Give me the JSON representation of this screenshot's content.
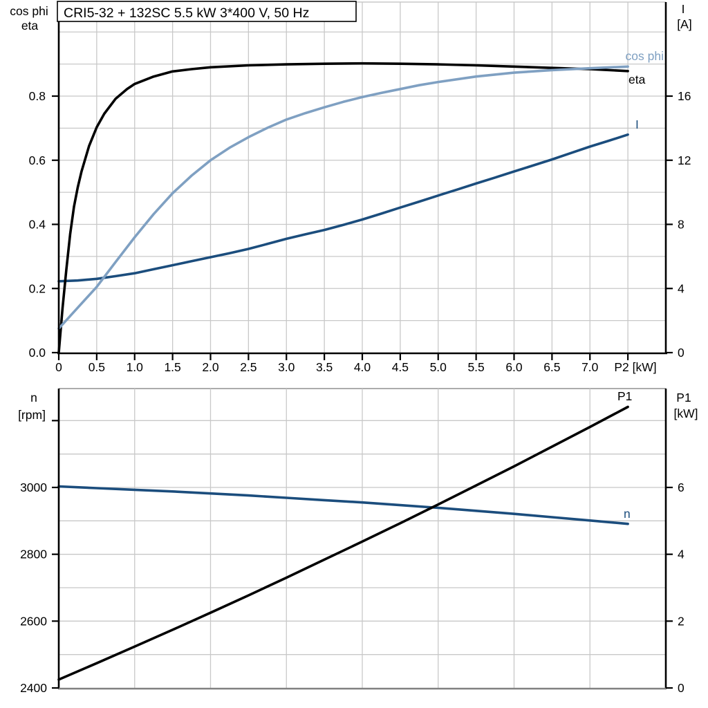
{
  "figure": {
    "background": "#ffffff",
    "title_box": {
      "text": "CRI5-32 + 132SC   5.5 kW   3*400 V, 50 Hz"
    }
  },
  "colors": {
    "black": "#000000",
    "light_blue": "#7fa0c2",
    "dark_blue": "#1b4d7d",
    "grid": "#c8c8c8",
    "top_border": "#c8c8c8",
    "gray_axis": "#808080",
    "bottom_top_border": "#a0a0a0",
    "text": "#000000"
  },
  "chart_data": [
    {
      "type": "line",
      "title": "CRI5-32 + 132SC   5.5 kW   3*400 V, 50 Hz",
      "x_axis": {
        "label": "P2 [kW]",
        "min": 0,
        "max": 8,
        "grid_step": 0.5,
        "tick_values": [
          0,
          0.5,
          1,
          1.5,
          2,
          2.5,
          3,
          3.5,
          4,
          4.5,
          5,
          5.5,
          6,
          6.5,
          7,
          7.5
        ],
        "tick_labels": [
          "0",
          "0.5",
          "1.0",
          "1.5",
          "2.0",
          "2.5",
          "3.0",
          "3.5",
          "4.0",
          "4.5",
          "5.0",
          "5.5",
          "6.0",
          "6.5",
          "7.0",
          ""
        ]
      },
      "y_left_axis": {
        "header": [
          "cos phi",
          "eta"
        ],
        "min": 0,
        "max": 1.093,
        "grid_step": 0.1,
        "tick_values": [
          0,
          0.2,
          0.4,
          0.6,
          0.8
        ],
        "tick_labels": [
          "0.0",
          "0.2",
          "0.4",
          "0.6",
          "0.8"
        ]
      },
      "y_right_axis": {
        "header": [
          "I",
          "[A]"
        ],
        "min": 0,
        "max": 21.87,
        "tick_values": [
          0,
          4,
          8,
          12,
          16
        ],
        "tick_labels": [
          "0",
          "4",
          "8",
          "12",
          "16"
        ]
      },
      "legend_position": "inline-labels",
      "grid": true,
      "series": [
        {
          "id": "current",
          "label": "I",
          "axis": "right",
          "color": "#1b4d7d",
          "label_anchor": [
            919,
            186,
            "start"
          ],
          "points": [
            [
              0,
              4.45
            ],
            [
              0.25,
              4.5
            ],
            [
              0.5,
              4.6
            ],
            [
              0.75,
              4.77
            ],
            [
              1,
              4.95
            ],
            [
              1.25,
              5.2
            ],
            [
              1.5,
              5.45
            ],
            [
              1.75,
              5.7
            ],
            [
              2,
              5.95
            ],
            [
              2.25,
              6.2
            ],
            [
              2.5,
              6.47
            ],
            [
              2.75,
              6.78
            ],
            [
              3,
              7.1
            ],
            [
              3.25,
              7.38
            ],
            [
              3.5,
              7.65
            ],
            [
              3.75,
              7.97
            ],
            [
              4,
              8.3
            ],
            [
              4.25,
              8.67
            ],
            [
              4.5,
              9.05
            ],
            [
              4.75,
              9.42
            ],
            [
              5,
              9.8
            ],
            [
              5.25,
              10.17
            ],
            [
              5.5,
              10.55
            ],
            [
              5.75,
              10.92
            ],
            [
              6,
              11.3
            ],
            [
              6.25,
              11.67
            ],
            [
              6.5,
              12.05
            ],
            [
              6.75,
              12.45
            ],
            [
              7,
              12.85
            ],
            [
              7.25,
              13.22
            ],
            [
              7.5,
              13.6
            ]
          ]
        },
        {
          "id": "eta",
          "label": "eta",
          "axis": "left",
          "color": "#000000",
          "label_anchor": [
            909,
            121,
            "start"
          ],
          "points": [
            [
              0,
              0
            ],
            [
              0.05,
              0.14
            ],
            [
              0.1,
              0.26
            ],
            [
              0.15,
              0.37
            ],
            [
              0.2,
              0.455
            ],
            [
              0.25,
              0.515
            ],
            [
              0.3,
              0.565
            ],
            [
              0.4,
              0.645
            ],
            [
              0.5,
              0.703
            ],
            [
              0.6,
              0.745
            ],
            [
              0.75,
              0.792
            ],
            [
              0.9,
              0.822
            ],
            [
              1,
              0.838
            ],
            [
              1.25,
              0.861
            ],
            [
              1.5,
              0.877
            ],
            [
              1.75,
              0.884
            ],
            [
              2,
              0.89
            ],
            [
              2.5,
              0.896
            ],
            [
              3,
              0.899
            ],
            [
              3.5,
              0.901
            ],
            [
              4,
              0.902
            ],
            [
              4.5,
              0.901
            ],
            [
              5,
              0.899
            ],
            [
              5.5,
              0.896
            ],
            [
              6,
              0.892
            ],
            [
              6.5,
              0.888
            ],
            [
              7,
              0.884
            ],
            [
              7.5,
              0.878
            ]
          ]
        },
        {
          "id": "cos_phi",
          "label": "cos phi",
          "axis": "left",
          "color": "#7fa0c2",
          "label_anchor": [
            960,
            87,
            "end"
          ],
          "points": [
            [
              0,
              0.075
            ],
            [
              0.25,
              0.14
            ],
            [
              0.5,
              0.205
            ],
            [
              0.75,
              0.283
            ],
            [
              1,
              0.36
            ],
            [
              1.25,
              0.432
            ],
            [
              1.5,
              0.497
            ],
            [
              1.75,
              0.552
            ],
            [
              2,
              0.6
            ],
            [
              2.25,
              0.639
            ],
            [
              2.5,
              0.672
            ],
            [
              2.75,
              0.701
            ],
            [
              3,
              0.727
            ],
            [
              3.25,
              0.747
            ],
            [
              3.5,
              0.765
            ],
            [
              3.75,
              0.782
            ],
            [
              4,
              0.797
            ],
            [
              4.25,
              0.81
            ],
            [
              4.5,
              0.822
            ],
            [
              4.75,
              0.834
            ],
            [
              5,
              0.844
            ],
            [
              5.5,
              0.861
            ],
            [
              6,
              0.873
            ],
            [
              6.5,
              0.881
            ],
            [
              7,
              0.887
            ],
            [
              7.5,
              0.892
            ]
          ]
        }
      ]
    },
    {
      "type": "line",
      "title": "",
      "x_axis": {
        "label": "",
        "min": 0,
        "max": 8,
        "grid_step": 1,
        "tick_values": [],
        "tick_labels": []
      },
      "y_left_axis": {
        "header": [
          "n",
          "[rpm]"
        ],
        "min": 2400,
        "max": 3296,
        "grid_step": 100,
        "tick_values": [
          2400,
          2600,
          2800,
          3000,
          3200
        ],
        "tick_labels": [
          "2400",
          "2600",
          "2800",
          "3000",
          ""
        ]
      },
      "y_right_axis": {
        "header": [
          "P1",
          "[kW]"
        ],
        "min": 0,
        "max": 8.96,
        "tick_values": [
          0,
          2,
          4,
          6
        ],
        "tick_labels": [
          "0",
          "2",
          "4",
          "6"
        ]
      },
      "legend_position": "inline-labels",
      "grid": true,
      "series": [
        {
          "id": "speed",
          "label": "n",
          "axis": "left",
          "color": "#1b4d7d",
          "label_anchor": [
            902,
            749,
            "start"
          ],
          "points": [
            [
              0,
              3003
            ],
            [
              0.5,
              2998
            ],
            [
              1,
              2993
            ],
            [
              1.5,
              2988
            ],
            [
              2,
              2982
            ],
            [
              2.5,
              2976
            ],
            [
              3,
              2969
            ],
            [
              3.5,
              2962
            ],
            [
              4,
              2955
            ],
            [
              4.5,
              2947
            ],
            [
              5,
              2939
            ],
            [
              5.5,
              2930
            ],
            [
              6,
              2921
            ],
            [
              6.5,
              2911
            ],
            [
              7,
              2901
            ],
            [
              7.5,
              2891
            ]
          ]
        },
        {
          "id": "input_power",
          "label": "P1",
          "axis": "right",
          "color": "#000000",
          "label_anchor": [
            893,
            579,
            "start"
          ],
          "points": [
            [
              0,
              0.25
            ],
            [
              0.5,
              0.74
            ],
            [
              1,
              1.24
            ],
            [
              1.5,
              1.74
            ],
            [
              2,
              2.25
            ],
            [
              2.5,
              2.77
            ],
            [
              3,
              3.3
            ],
            [
              3.5,
              3.84
            ],
            [
              4,
              4.38
            ],
            [
              4.5,
              4.93
            ],
            [
              5,
              5.49
            ],
            [
              5.5,
              6.06
            ],
            [
              6,
              6.63
            ],
            [
              6.5,
              7.22
            ],
            [
              7,
              7.81
            ],
            [
              7.5,
              8.41
            ]
          ]
        }
      ]
    }
  ]
}
